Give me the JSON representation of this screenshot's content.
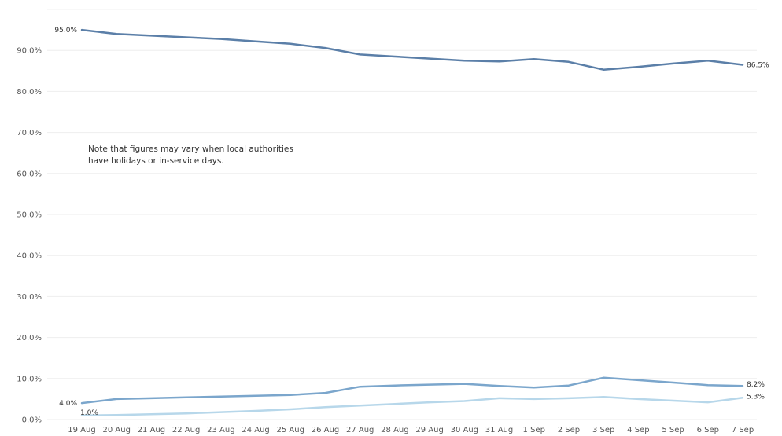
{
  "chart_data": {
    "type": "line",
    "title": "",
    "xlabel": "",
    "ylabel": "",
    "categories": [
      "19 Aug",
      "20 Aug",
      "21 Aug",
      "22 Aug",
      "23 Aug",
      "24 Aug",
      "25 Aug",
      "26 Aug",
      "27 Aug",
      "28 Aug",
      "29 Aug",
      "30 Aug",
      "31 Aug",
      "1 Sep",
      "2 Sep",
      "3 Sep",
      "4 Sep",
      "5 Sep",
      "6 Sep",
      "7 Sep"
    ],
    "y_ticks": [
      "0.0%",
      "10.0%",
      "20.0%",
      "30.0%",
      "40.0%",
      "50.0%",
      "60.0%",
      "70.0%",
      "80.0%",
      "90.0%"
    ],
    "ylim": [
      0,
      100
    ],
    "grid": true,
    "legend": "none",
    "series": [
      {
        "color": "#5b7fa8",
        "values": [
          95.0,
          94.0,
          93.6,
          93.2,
          92.8,
          92.2,
          91.6,
          90.6,
          89.0,
          88.5,
          88.0,
          87.5,
          87.3,
          87.9,
          87.2,
          85.3,
          86.0,
          86.8,
          87.5,
          86.5
        ],
        "start_label": "95.0%",
        "end_label": "86.5%"
      },
      {
        "color": "#7ba6cc",
        "values": [
          4.0,
          5.0,
          5.2,
          5.4,
          5.6,
          5.8,
          6.0,
          6.5,
          8.0,
          8.3,
          8.5,
          8.7,
          8.2,
          7.8,
          8.3,
          10.2,
          9.6,
          9.0,
          8.4,
          8.2
        ],
        "start_label": "4.0%",
        "end_label": "8.2%"
      },
      {
        "color": "#b7d7ea",
        "values": [
          1.0,
          1.1,
          1.3,
          1.5,
          1.8,
          2.1,
          2.5,
          3.0,
          3.4,
          3.8,
          4.2,
          4.5,
          5.2,
          5.0,
          5.2,
          5.5,
          5.0,
          4.6,
          4.2,
          5.3
        ],
        "start_label": "1.0%",
        "end_label": "5.3%"
      }
    ],
    "annotation": {
      "lines": [
        "Note that figures may vary when  local authorities",
        "have holidays or in-service days."
      ]
    }
  }
}
